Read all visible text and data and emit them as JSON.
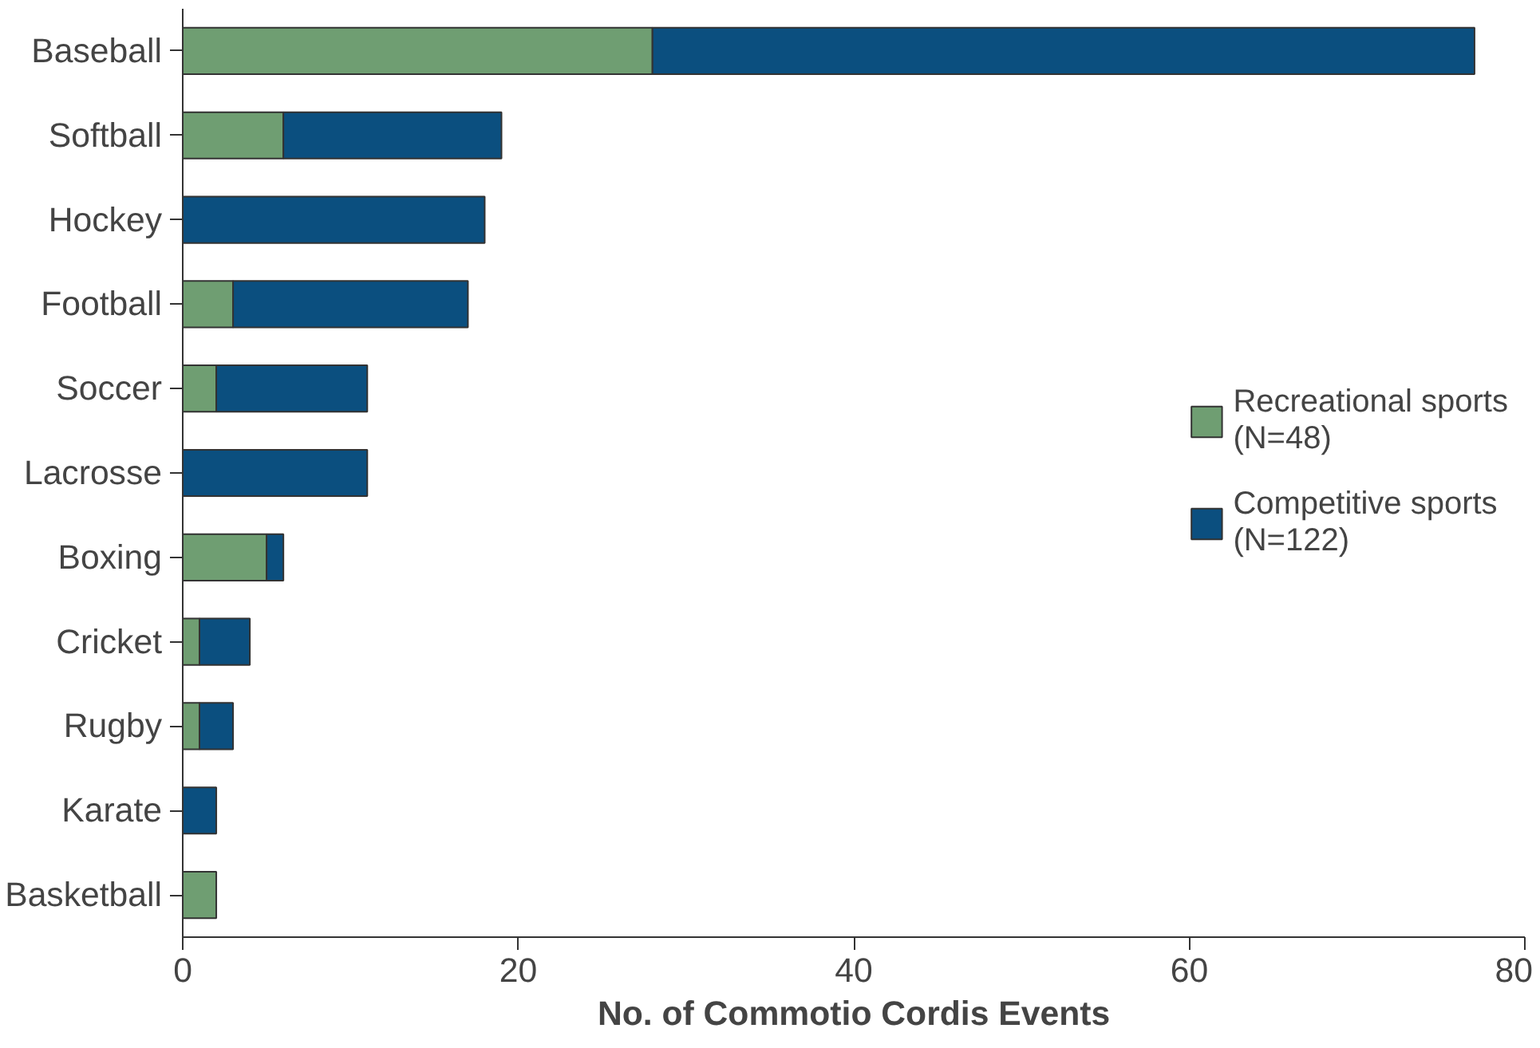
{
  "chart_data": {
    "type": "bar",
    "orientation": "horizontal",
    "stacked": true,
    "xlabel": "No. of Commotio Cordis Events",
    "categories": [
      "Baseball",
      "Softball",
      "Hockey",
      "Football",
      "Soccer",
      "Lacrosse",
      "Boxing",
      "Cricket",
      "Rugby",
      "Karate",
      "Basketball"
    ],
    "series": [
      {
        "name": "Recreational sports\n(N=48)",
        "color": "#6f9e72",
        "values": [
          28,
          6,
          0,
          3,
          2,
          0,
          5,
          1,
          1,
          0,
          2
        ]
      },
      {
        "name": "Competitive sports\n(N=122)",
        "color": "#0b4f7f",
        "values": [
          49,
          13,
          18,
          14,
          9,
          11,
          1,
          3,
          2,
          2,
          0
        ]
      }
    ],
    "xlim": [
      0,
      80
    ],
    "xticks": [
      0,
      20,
      40,
      60,
      80
    ],
    "legend": "right",
    "grid": false
  }
}
